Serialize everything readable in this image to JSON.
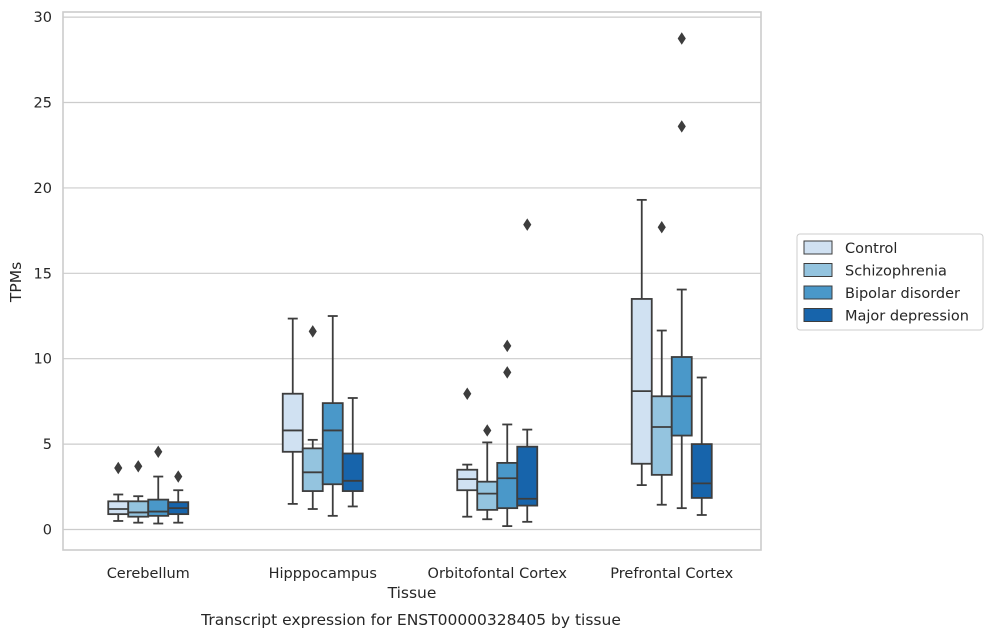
{
  "caption": "Transcript expression for ENST00000328405 by tissue",
  "chart_data": {
    "type": "box",
    "xlabel": "Tissue",
    "ylabel": "TPMs",
    "ylim": [
      -1.2,
      30.3
    ],
    "yticks": [
      0,
      5,
      10,
      15,
      20,
      25,
      30
    ],
    "grid": true,
    "legend_position": "right",
    "categories": [
      "Cerebellum",
      "Hipppocampus",
      "Orbitofontal Cortex",
      "Prefrontal Cortex"
    ],
    "series": [
      {
        "name": "Control",
        "color": "#d0e1f2",
        "boxes": [
          {
            "whisker_low": 0.5,
            "q1": 0.9,
            "median": 1.2,
            "q3": 1.65,
            "whisker_high": 2.05,
            "outliers": [
              3.6
            ]
          },
          {
            "whisker_low": 1.5,
            "q1": 4.55,
            "median": 5.8,
            "q3": 7.95,
            "whisker_high": 12.35,
            "outliers": []
          },
          {
            "whisker_low": 0.75,
            "q1": 2.3,
            "median": 2.95,
            "q3": 3.5,
            "whisker_high": 3.8,
            "outliers": [
              7.95
            ]
          },
          {
            "whisker_low": 2.6,
            "q1": 3.85,
            "median": 8.1,
            "q3": 13.5,
            "whisker_high": 19.3,
            "outliers": []
          }
        ]
      },
      {
        "name": "Schizophrenia",
        "color": "#94c4df",
        "boxes": [
          {
            "whisker_low": 0.4,
            "q1": 0.75,
            "median": 1.0,
            "q3": 1.65,
            "whisker_high": 1.95,
            "outliers": [
              3.7
            ]
          },
          {
            "whisker_low": 1.2,
            "q1": 2.25,
            "median": 3.35,
            "q3": 4.75,
            "whisker_high": 5.25,
            "outliers": [
              11.6
            ]
          },
          {
            "whisker_low": 0.6,
            "q1": 1.15,
            "median": 2.1,
            "q3": 2.8,
            "whisker_high": 5.1,
            "outliers": [
              5.8
            ]
          },
          {
            "whisker_low": 1.45,
            "q1": 3.2,
            "median": 6.0,
            "q3": 7.8,
            "whisker_high": 11.65,
            "outliers": [
              17.7
            ]
          }
        ]
      },
      {
        "name": "Bipolar disorder",
        "color": "#4a98c9",
        "boxes": [
          {
            "whisker_low": 0.35,
            "q1": 0.8,
            "median": 1.05,
            "q3": 1.75,
            "whisker_high": 3.1,
            "outliers": [
              4.55
            ]
          },
          {
            "whisker_low": 0.8,
            "q1": 2.65,
            "median": 5.8,
            "q3": 7.4,
            "whisker_high": 12.5,
            "outliers": []
          },
          {
            "whisker_low": 0.2,
            "q1": 1.25,
            "median": 3.0,
            "q3": 3.9,
            "whisker_high": 6.15,
            "outliers": [
              9.2,
              10.75
            ]
          },
          {
            "whisker_low": 1.25,
            "q1": 5.5,
            "median": 7.8,
            "q3": 10.1,
            "whisker_high": 14.05,
            "outliers": [
              23.6,
              28.75
            ]
          }
        ]
      },
      {
        "name": "Major depression",
        "color": "#1764ab",
        "boxes": [
          {
            "whisker_low": 0.4,
            "q1": 0.9,
            "median": 1.25,
            "q3": 1.6,
            "whisker_high": 2.3,
            "outliers": [
              3.1
            ]
          },
          {
            "whisker_low": 1.35,
            "q1": 2.25,
            "median": 2.85,
            "q3": 4.45,
            "whisker_high": 7.7,
            "outliers": []
          },
          {
            "whisker_low": 0.45,
            "q1": 1.4,
            "median": 1.8,
            "q3": 4.85,
            "whisker_high": 5.85,
            "outliers": [
              17.85
            ]
          },
          {
            "whisker_low": 0.85,
            "q1": 1.85,
            "median": 2.7,
            "q3": 5.0,
            "whisker_high": 8.9,
            "outliers": []
          }
        ]
      }
    ]
  }
}
